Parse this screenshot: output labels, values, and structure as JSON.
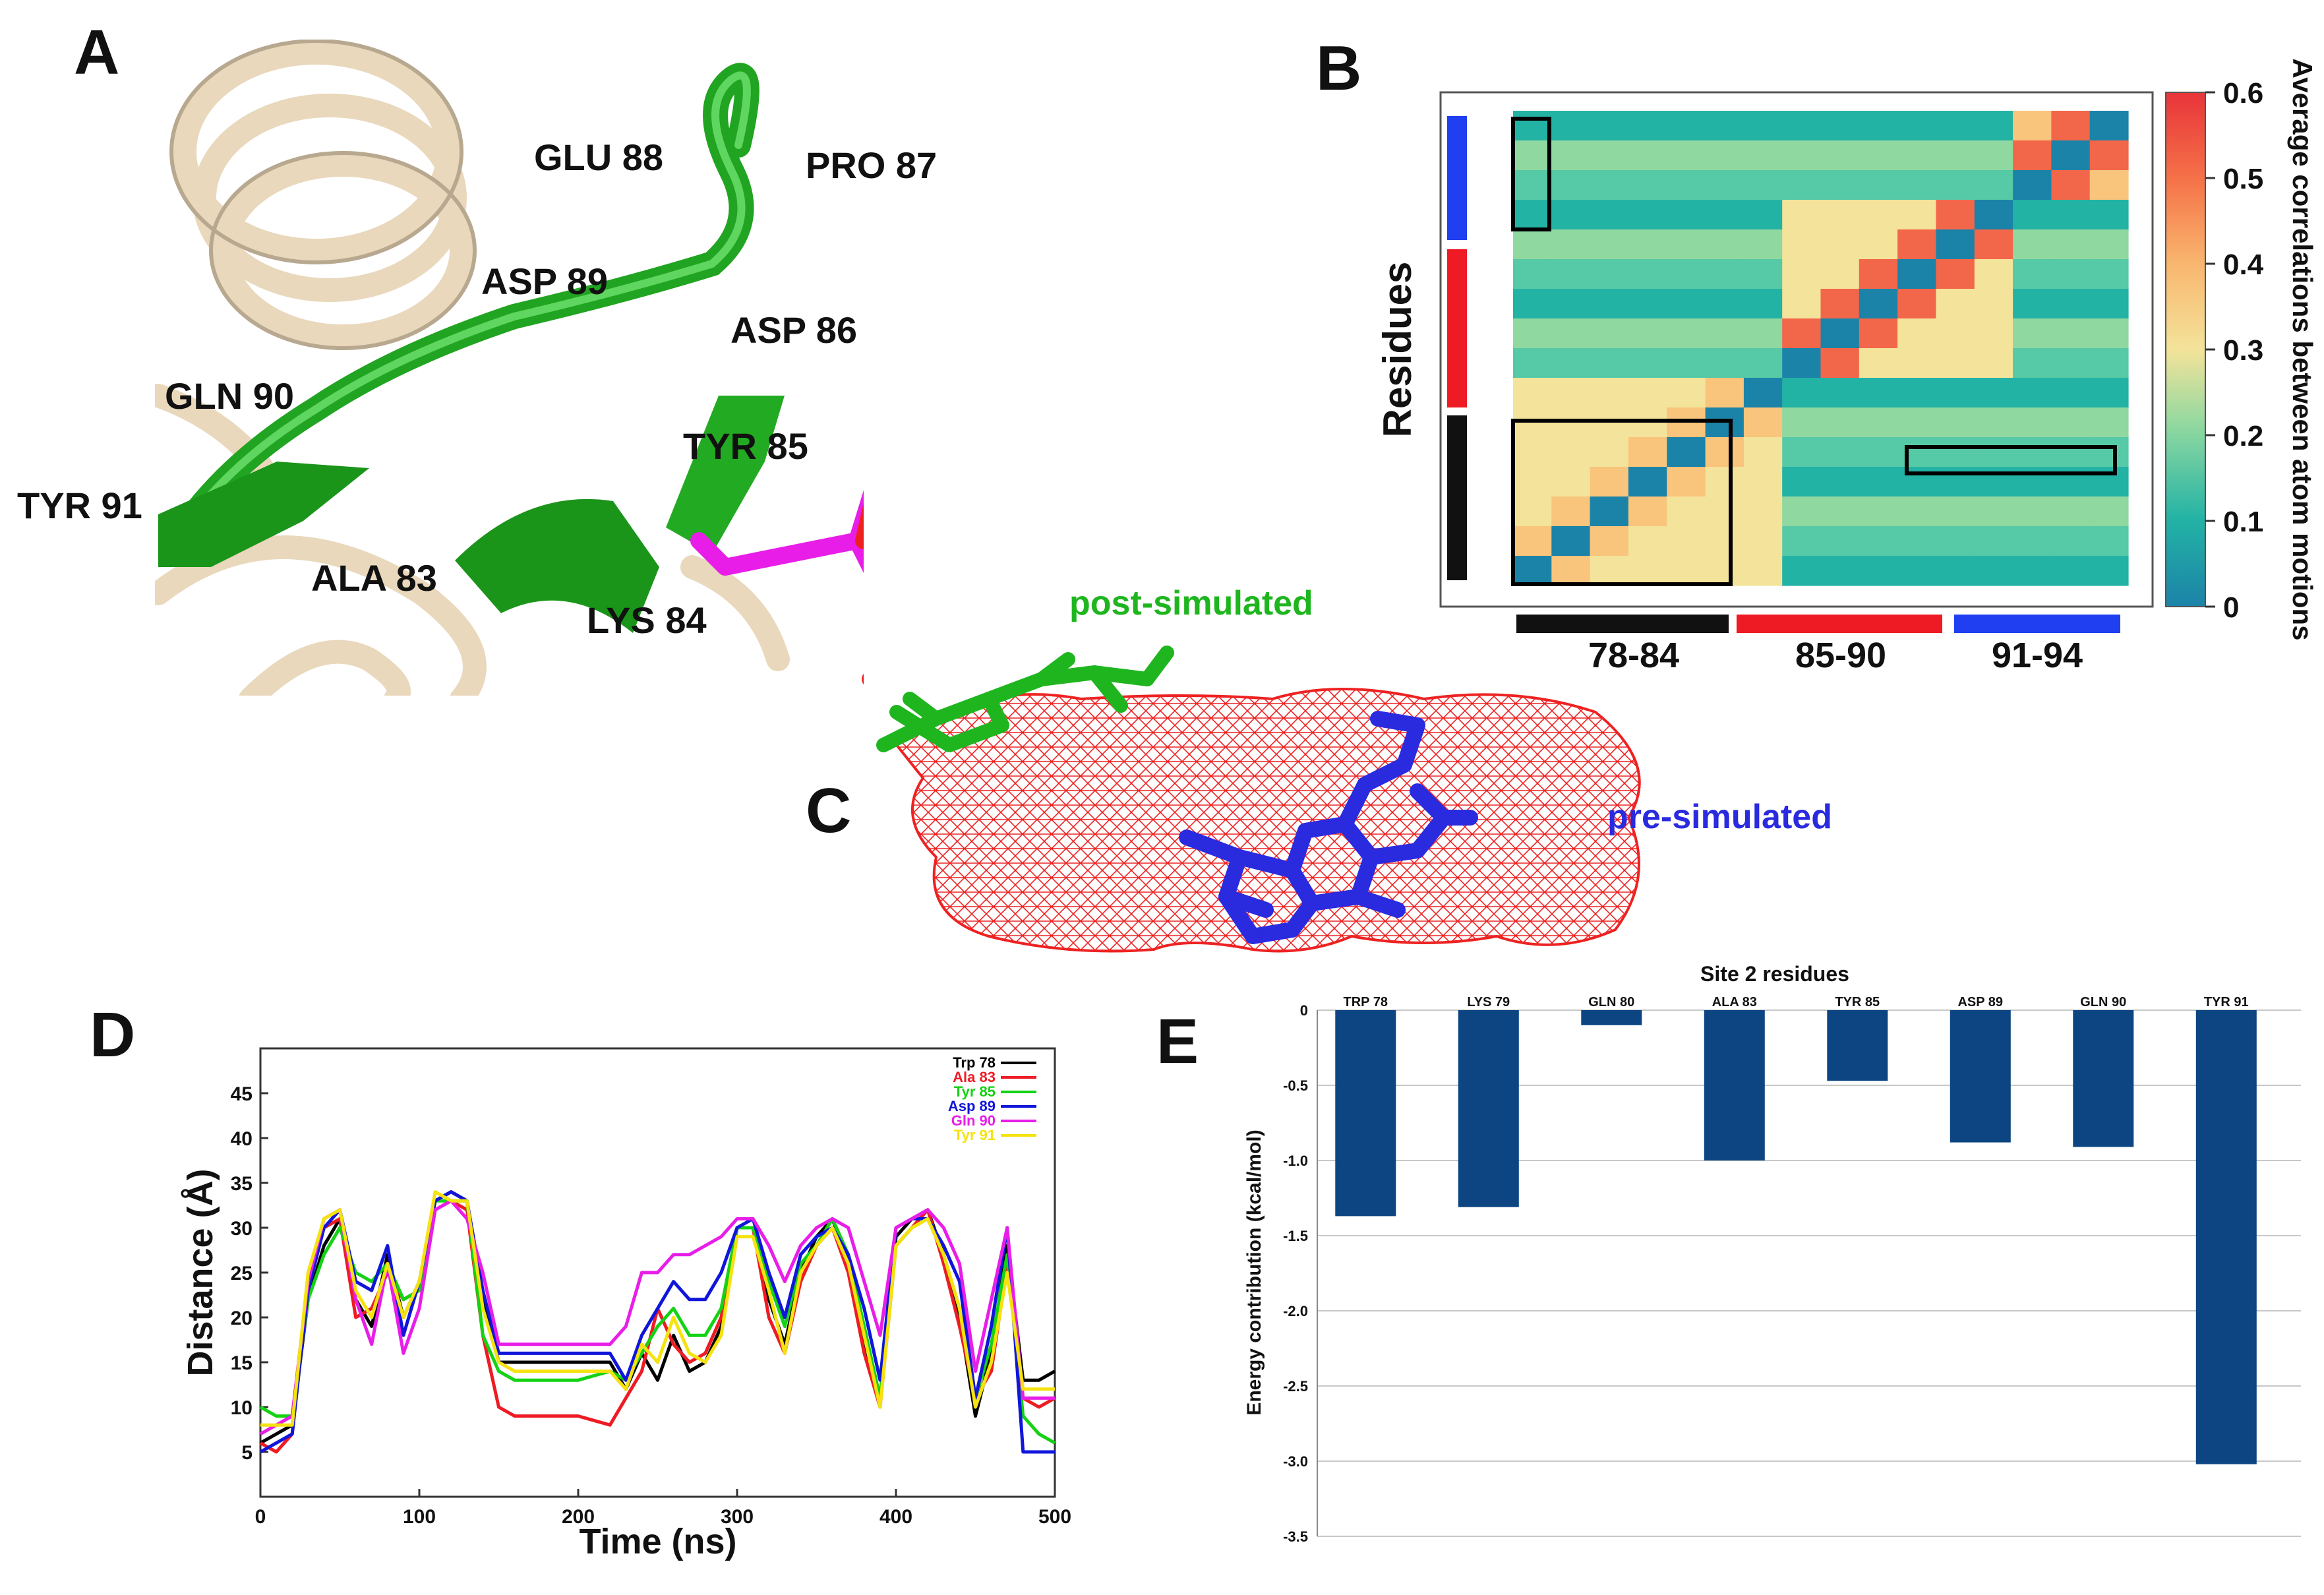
{
  "panels": {
    "a": "A",
    "b": "B",
    "c": "C",
    "d": "D",
    "e": "E"
  },
  "panel_a": {
    "residue_labels": [
      "GLU 88",
      "PRO 87",
      "ASP 89",
      "ASP 86",
      "GLN 90",
      "TYR 85",
      "TYR 91",
      "ALA 83",
      "LYS 84"
    ]
  },
  "panel_b": {
    "ylabel": "Residues",
    "colorbar_label": "Average correlations between atom motions",
    "colorbar_ticks": [
      "0.6",
      "0.5",
      "0.4",
      "0.3",
      "0.2",
      "0.1",
      "0"
    ],
    "groups": [
      "78-84",
      "85-90",
      "91-94"
    ],
    "group_colors": [
      "#111111",
      "#ee1b24",
      "#1f3ff0"
    ]
  },
  "panel_c": {
    "post_label": "post-simulated",
    "pre_label": "pre-simulated"
  },
  "colors": {
    "post": "#1fb51f",
    "pre": "#2a2adf",
    "mesh": "#ee2222",
    "ligand": "#e81ee8",
    "bar": "#0c4582"
  },
  "chart_data": [
    {
      "type": "line",
      "title": "",
      "xlabel": "Time (ns)",
      "ylabel": "Distance (Å)",
      "xlim": [
        0,
        500
      ],
      "ylim": [
        0,
        50
      ],
      "xticks": [
        0,
        100,
        200,
        300,
        400,
        500
      ],
      "yticks": [
        5,
        10,
        15,
        20,
        25,
        30,
        35,
        40,
        45
      ],
      "x": [
        0,
        10,
        20,
        30,
        40,
        50,
        60,
        70,
        80,
        90,
        100,
        110,
        120,
        130,
        140,
        150,
        160,
        180,
        200,
        220,
        230,
        240,
        250,
        260,
        270,
        280,
        290,
        300,
        310,
        320,
        330,
        340,
        350,
        360,
        370,
        380,
        390,
        400,
        410,
        420,
        430,
        440,
        450,
        460,
        470,
        480,
        490,
        500
      ],
      "series": [
        {
          "name": "Trp 78",
          "color": "#000000",
          "values": [
            6,
            7,
            8,
            22,
            28,
            31,
            22,
            19,
            27,
            20,
            24,
            33,
            34,
            33,
            22,
            15,
            15,
            15,
            15,
            15,
            12,
            16,
            13,
            18,
            14,
            15,
            19,
            30,
            30,
            22,
            17,
            25,
            29,
            31,
            26,
            17,
            11,
            29,
            31,
            32,
            27,
            20,
            9,
            16,
            28,
            13,
            13,
            14
          ]
        },
        {
          "name": "Ala 83",
          "color": "#ee1b24",
          "values": [
            6,
            5,
            7,
            24,
            30,
            31,
            20,
            21,
            25,
            22,
            23,
            32,
            33,
            32,
            18,
            10,
            9,
            9,
            9,
            8,
            11,
            14,
            21,
            17,
            15,
            16,
            20,
            30,
            30,
            20,
            16,
            24,
            28,
            30,
            25,
            16,
            10,
            28,
            30,
            32,
            26,
            19,
            11,
            14,
            26,
            11,
            10,
            11
          ]
        },
        {
          "name": "Tyr 85",
          "color": "#14d214",
          "values": [
            10,
            9,
            9,
            22,
            27,
            30,
            25,
            24,
            26,
            22,
            23,
            33,
            33,
            33,
            18,
            14,
            13,
            13,
            13,
            14,
            13,
            16,
            19,
            21,
            18,
            18,
            21,
            30,
            30,
            24,
            19,
            26,
            28,
            31,
            27,
            19,
            11,
            28,
            30,
            31,
            27,
            21,
            11,
            17,
            27,
            9,
            7,
            6
          ]
        },
        {
          "name": "Asp 89",
          "color": "#1016d9",
          "values": [
            5,
            6,
            7,
            23,
            30,
            32,
            24,
            23,
            28,
            18,
            24,
            33,
            34,
            33,
            23,
            16,
            16,
            16,
            16,
            16,
            13,
            18,
            21,
            24,
            22,
            22,
            25,
            30,
            31,
            25,
            20,
            27,
            29,
            30,
            27,
            21,
            13,
            30,
            31,
            31,
            28,
            24,
            11,
            19,
            30,
            5,
            5,
            5
          ]
        },
        {
          "name": "Gln 90",
          "color": "#e81ee8",
          "values": [
            7,
            8,
            9,
            24,
            31,
            32,
            22,
            17,
            26,
            16,
            21,
            32,
            33,
            31,
            25,
            17,
            17,
            17,
            17,
            17,
            19,
            25,
            25,
            27,
            27,
            28,
            29,
            31,
            31,
            28,
            24,
            28,
            30,
            31,
            30,
            24,
            18,
            30,
            31,
            32,
            30,
            26,
            14,
            22,
            30,
            11,
            11,
            11
          ]
        },
        {
          "name": "Tyr 91",
          "color": "#f5e20f",
          "values": [
            8,
            8,
            8,
            25,
            31,
            32,
            23,
            20,
            26,
            20,
            24,
            34,
            33,
            33,
            21,
            15,
            14,
            14,
            14,
            14,
            12,
            17,
            15,
            20,
            16,
            15,
            18,
            29,
            29,
            23,
            16,
            25,
            28,
            30,
            26,
            18,
            10,
            28,
            30,
            31,
            27,
            21,
            10,
            15,
            25,
            12,
            12,
            12
          ]
        }
      ],
      "legend": "top-right"
    },
    {
      "type": "bar",
      "title": "Site 2 residues",
      "xlabel": "",
      "ylabel": "Energy contribution (kcal/mol)",
      "ylim": [
        -3.5,
        0
      ],
      "yticks": [
        "0",
        "-0.5",
        "-1.0",
        "-1.5",
        "-2.0",
        "-2.5",
        "-3.0",
        "-3.5"
      ],
      "categories": [
        "TRP 78",
        "LYS 79",
        "GLN 80",
        "ALA 83",
        "TYR 85",
        "ASP 89",
        "GLN 90",
        "TYR 91"
      ],
      "values": [
        -1.37,
        -1.31,
        -0.1,
        -1.0,
        -0.47,
        -0.88,
        -0.91,
        -3.02
      ],
      "grid": true
    }
  ]
}
